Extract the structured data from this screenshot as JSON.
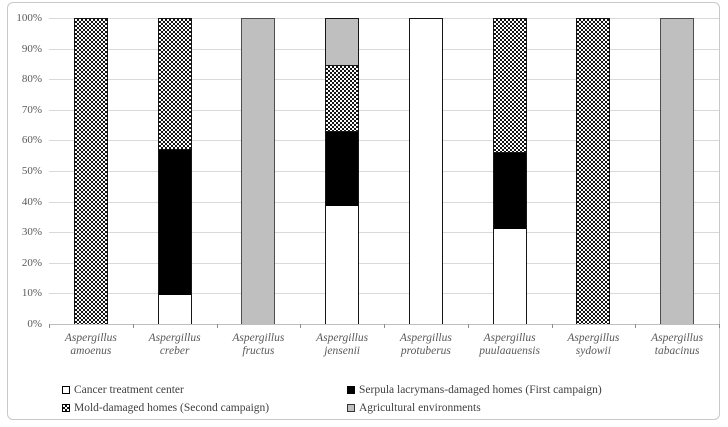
{
  "chart_data": {
    "type": "bar",
    "variant": "stacked-100-percent",
    "title": "",
    "xlabel": "",
    "ylabel": "",
    "ylim": [
      0,
      100
    ],
    "grid": true,
    "y_ticks": [
      "100%",
      "90%",
      "80%",
      "70%",
      "60%",
      "50%",
      "40%",
      "30%",
      "20%",
      "10%",
      "0%"
    ],
    "categories": [
      {
        "genus": "Aspergillus",
        "species": "amoenus"
      },
      {
        "genus": "Aspergillus",
        "species": "creber"
      },
      {
        "genus": "Aspergillus",
        "species": "fructus"
      },
      {
        "genus": "Aspergillus",
        "species": "jensenii"
      },
      {
        "genus": "Aspergillus",
        "species": "protuberus"
      },
      {
        "genus": "Aspergillus",
        "species": "puulaauensis"
      },
      {
        "genus": "Aspergillus",
        "species": "sydowii"
      },
      {
        "genus": "Aspergillus",
        "species": "tabacinus"
      }
    ],
    "series": [
      {
        "name": "Cancer treatment center",
        "key": "cancer",
        "fill": "white",
        "values": [
          0,
          9.5,
          0,
          38.5,
          100,
          31.2,
          0,
          0
        ]
      },
      {
        "name": "Serpula lacrymans-damaged homes (First campaign)",
        "key": "serpula",
        "fill": "black",
        "values": [
          0,
          47.6,
          0,
          24.6,
          0,
          25.0,
          0,
          0
        ]
      },
      {
        "name": "Mold-damaged homes (Second campaign)",
        "key": "mold",
        "fill": "crosshatch",
        "values": [
          100,
          42.9,
          0,
          21.5,
          0,
          43.8,
          100,
          0
        ]
      },
      {
        "name": "Agricultural environments",
        "key": "agricultural",
        "fill": "gray",
        "values": [
          0,
          0,
          100,
          15.4,
          0,
          0,
          0,
          100
        ]
      }
    ],
    "legend": {
      "position": "bottom",
      "entries": [
        {
          "label": "Cancer treatment center",
          "key": "cancer"
        },
        {
          "label": "Serpula lacrymans-damaged homes (First campaign)",
          "key": "serpula"
        },
        {
          "label": "Mold-damaged homes (Second campaign)",
          "key": "mold"
        },
        {
          "label": "Agricultural environments",
          "key": "agricultural"
        }
      ]
    },
    "colors": {
      "white_fill": "#ffffff",
      "black_fill": "#000000",
      "gray_fill": "#bfbfbf",
      "gridline": "#d9d9d9",
      "axis_text": "#595959",
      "legend_text": "#404040",
      "figure_border": "#c9c9c9"
    }
  }
}
